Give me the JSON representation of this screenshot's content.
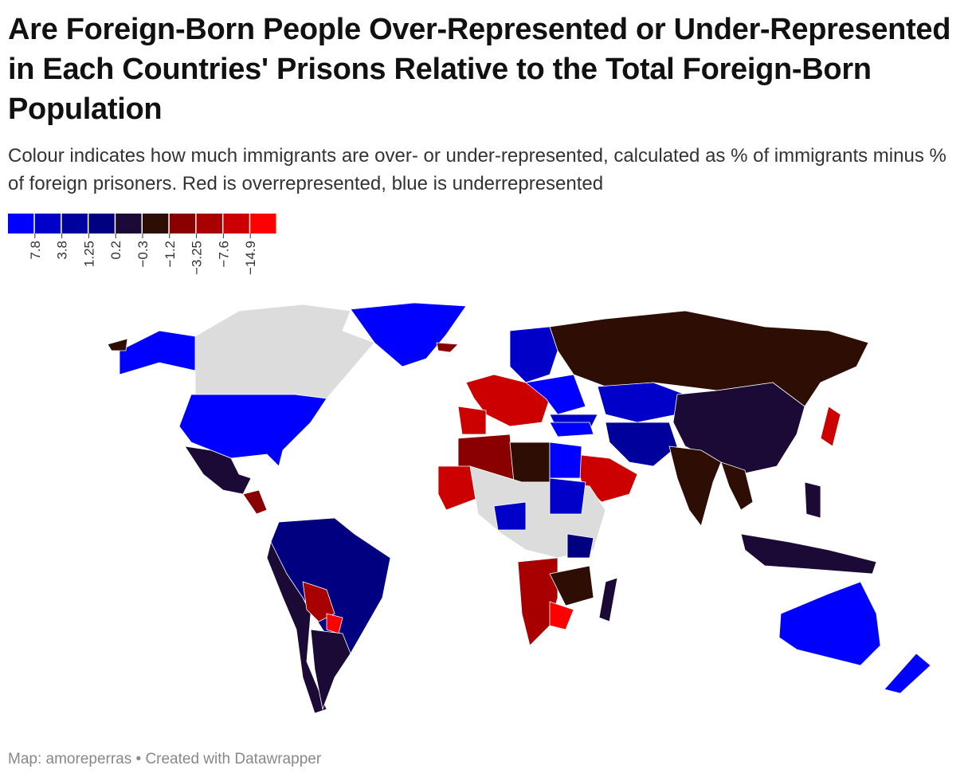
{
  "header": {
    "title": "Are Foreign-Born People Over-Represented or Under-Represented in Each Countries' Prisons Relative to the Total Foreign-Born Population",
    "subtitle": "Colour indicates how much immigrants are over- or under-represented, calculated as % of immigrants minus % of foreign prisoners. Red is overrepresented, blue is underrepresented"
  },
  "legend": {
    "colors": [
      "#0000ff",
      "#0000c8",
      "#00009c",
      "#000080",
      "#1c0a36",
      "#2e0e04",
      "#8a0000",
      "#a80000",
      "#cc0000",
      "#ff0000"
    ],
    "labels": [
      "7.8",
      "3.8",
      "1.25",
      "0.2",
      "−0.3",
      "−1.2",
      "−3.25",
      "−7.6",
      "−14.9"
    ]
  },
  "footer": "Map: amoreperras • Created with Datawrapper"
}
